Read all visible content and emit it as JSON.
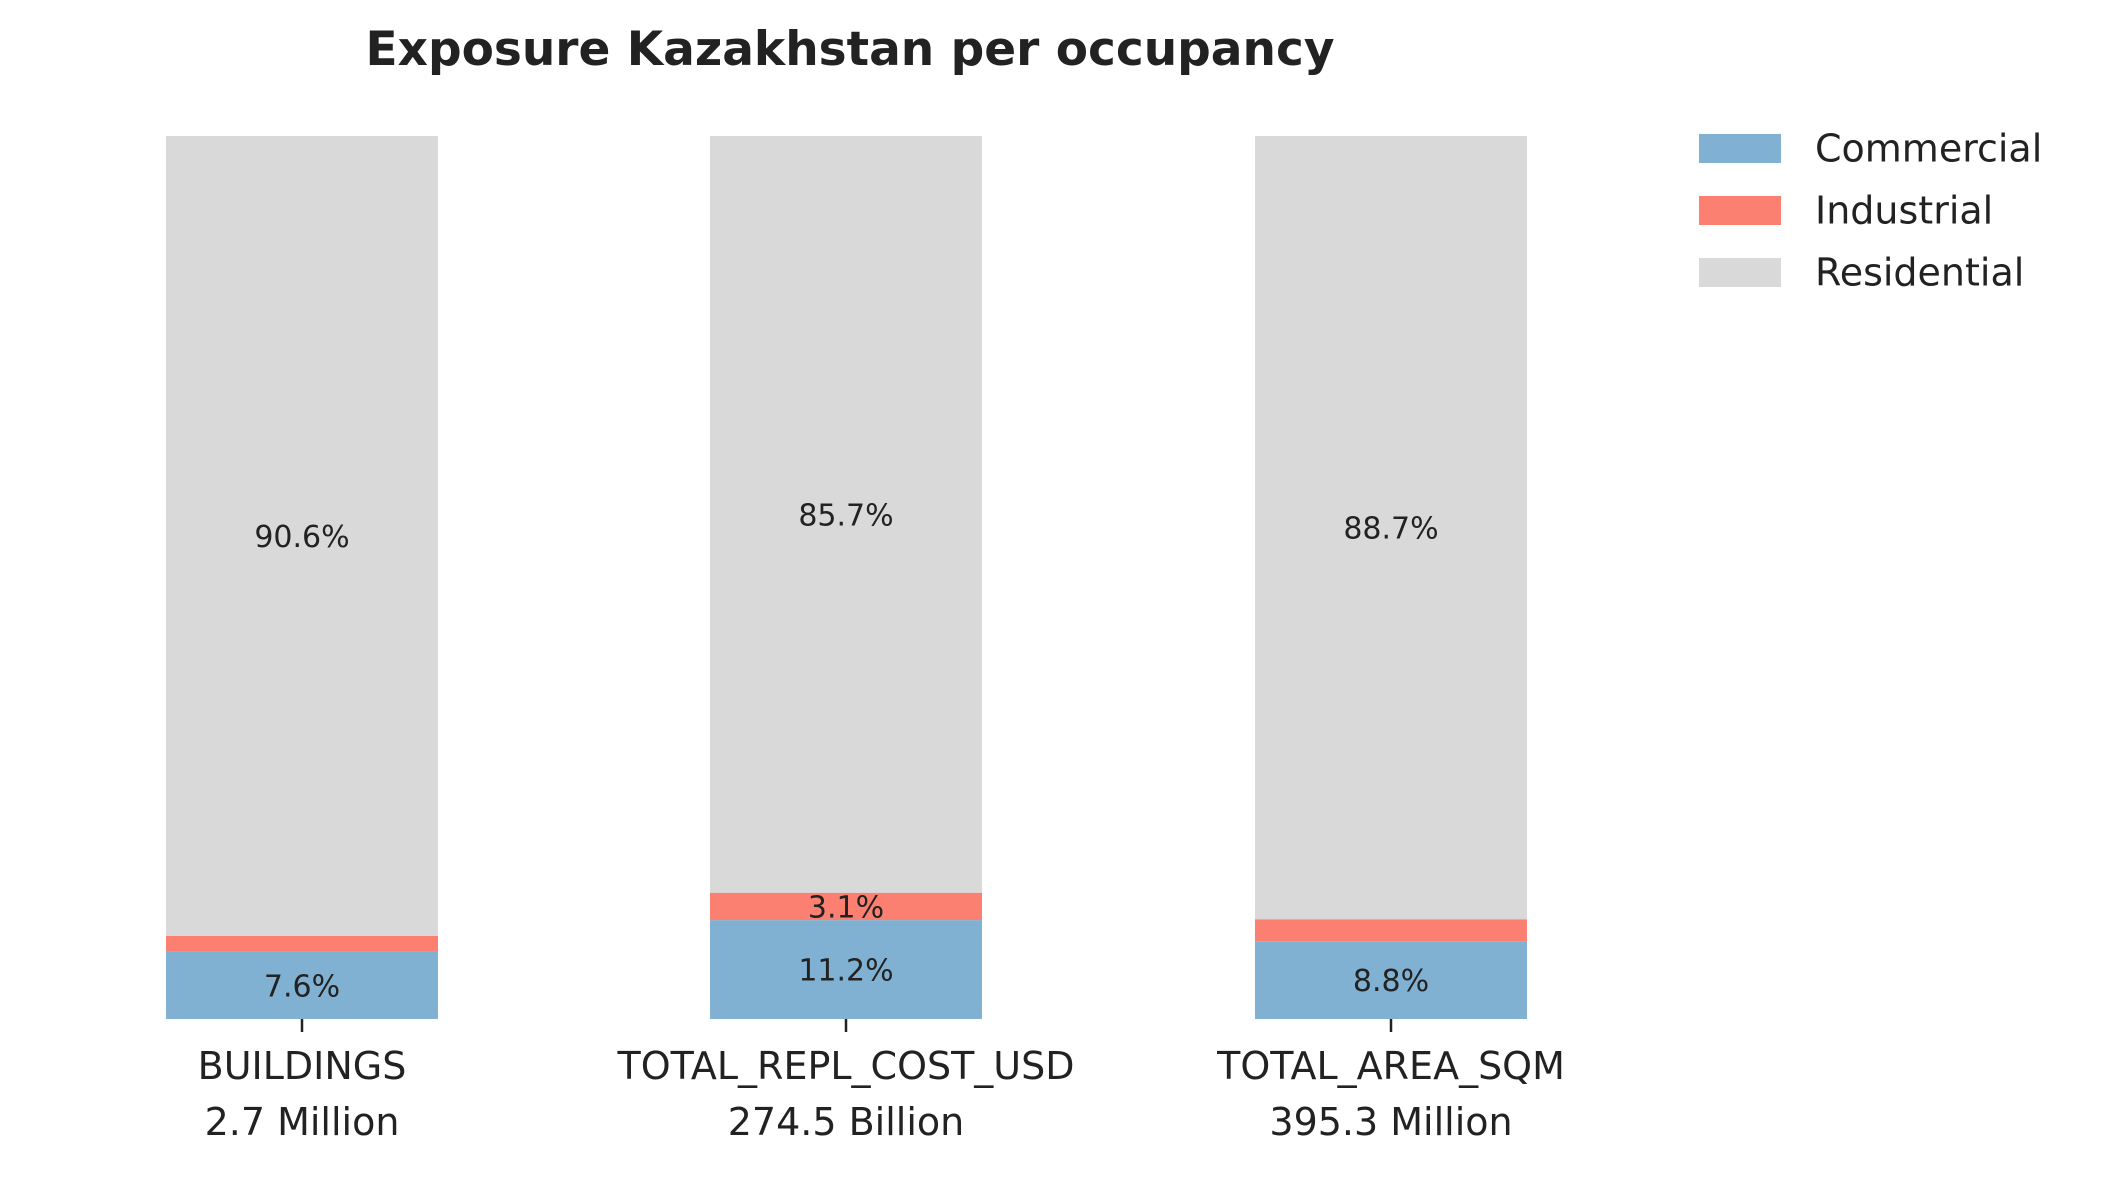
{
  "chart_data": {
    "type": "bar",
    "stacked": true,
    "title": "Exposure Kazakhstan per occupancy",
    "xlabel": "",
    "ylabel": "",
    "ylim": [
      0,
      100
    ],
    "grid": false,
    "legend_position": "top-right",
    "categories": [
      "BUILDINGS",
      "TOTAL_REPL_COST_USD",
      "TOTAL_AREA_SQM"
    ],
    "category_totals": [
      "2.7 Million",
      "274.5 Billion",
      "395.3 Million"
    ],
    "series": [
      {
        "name": "Commercial",
        "color": "#80b1d3",
        "values": [
          7.6,
          11.2,
          8.8
        ],
        "labels": [
          "7.6%",
          "11.2%",
          "8.8%"
        ]
      },
      {
        "name": "Industrial",
        "color": "#fb8072",
        "values": [
          1.8,
          3.1,
          2.5
        ],
        "labels": [
          "",
          "3.1%",
          ""
        ]
      },
      {
        "name": "Residential",
        "color": "#d9d9d9",
        "values": [
          90.6,
          85.7,
          88.7
        ],
        "labels": [
          "90.6%",
          "85.7%",
          "88.7%"
        ]
      }
    ]
  }
}
